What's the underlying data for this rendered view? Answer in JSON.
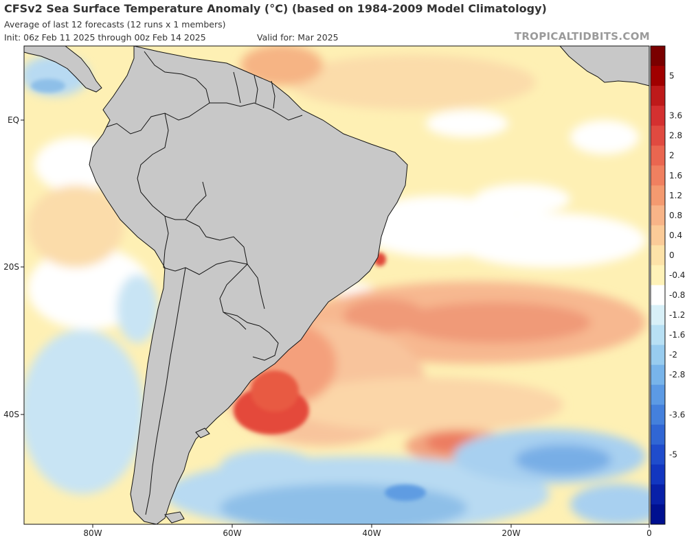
{
  "header": {
    "title": "CFSv2 Sea Surface Temperature Anomaly (°C) (based on 1984-2009 Model Climatology)",
    "subtitle": "Average of last 12 forecasts (12 runs x 1 members)",
    "init": "Init: 06z Feb 11 2025 through 00z Feb 14 2025",
    "valid": "Valid for: Mar 2025",
    "brand": "TROPICALTIDBITS.COM"
  },
  "lat_labels": [
    "EQ",
    "20S",
    "40S"
  ],
  "lon_labels": [
    "80W",
    "60W",
    "40W",
    "20W",
    "0"
  ],
  "colorbar": {
    "labels": [
      "5",
      "3.6",
      "2.8",
      "2",
      "1.6",
      "1.2",
      "0.8",
      "0.4",
      "0",
      "-0.4",
      "-0.8",
      "-1.2",
      "-1.6",
      "-2",
      "-2.8",
      "-3.6",
      "-5"
    ],
    "colors": [
      "#7a0000",
      "#a00000",
      "#be1a1a",
      "#d43030",
      "#e04a40",
      "#ea6650",
      "#f08060",
      "#f49a70",
      "#f8b488",
      "#fbcb98",
      "#fde2a8",
      "#fff2b8",
      "#ffffff",
      "#d8f0f8",
      "#b8e0f4",
      "#98ccef",
      "#78b4ea",
      "#5c9ae4",
      "#4480dc",
      "#3066d4",
      "#1f4ccc",
      "#1236c0",
      "#0820a8",
      "#001090"
    ]
  }
}
